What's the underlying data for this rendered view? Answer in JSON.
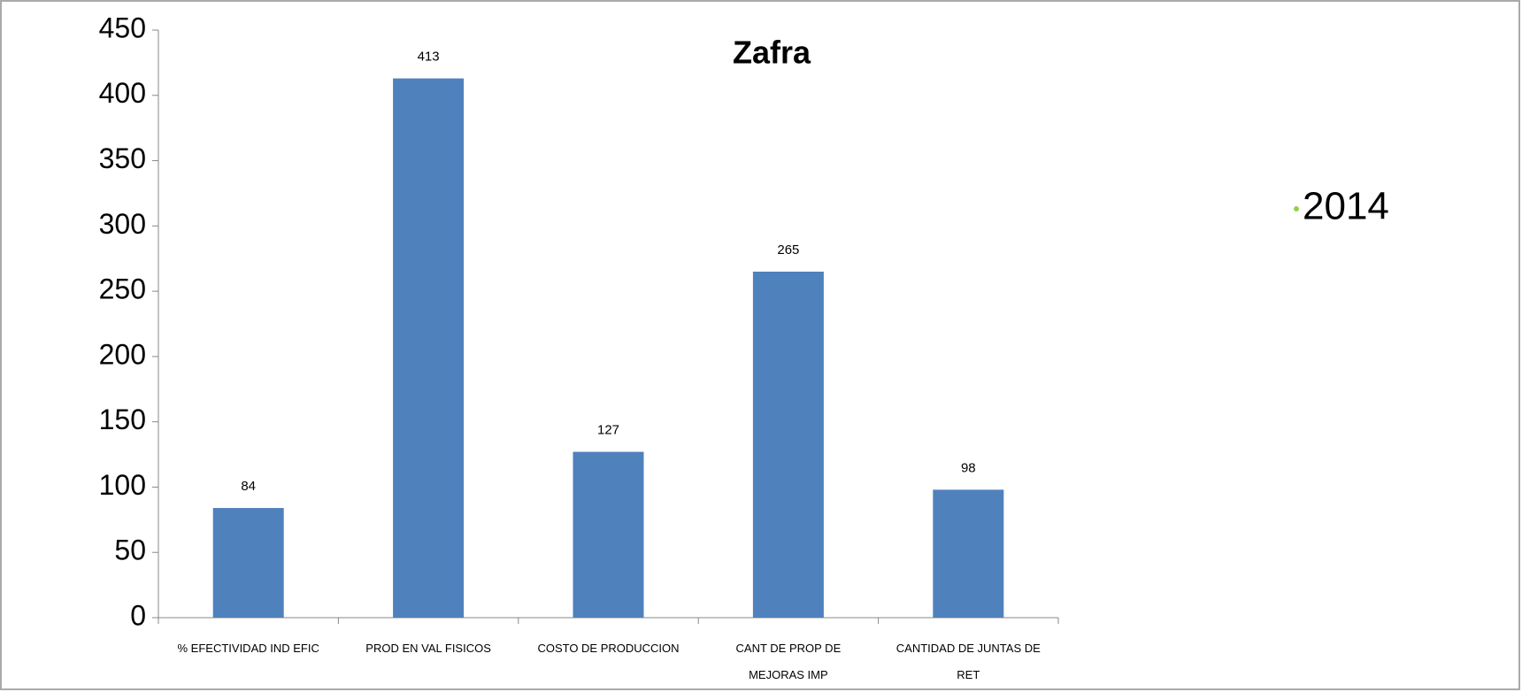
{
  "chart_data": {
    "type": "bar",
    "title": "Zafra",
    "categories": [
      "% EFECTIVIDAD IND EFIC",
      "PROD EN VAL FISICOS",
      "COSTO DE PRODUCCION",
      "CANT DE PROP DE MEJORAS IMP",
      "CANTIDAD DE JUNTAS DE RET"
    ],
    "series": [
      {
        "name": "2014",
        "color": "#4f81bd",
        "values": [
          84,
          413,
          127,
          265,
          98
        ]
      }
    ],
    "legend_color": "#92d050",
    "ylim": [
      0,
      450
    ],
    "yticks": [
      0,
      50,
      100,
      150,
      200,
      250,
      300,
      350,
      400,
      450
    ],
    "grid": false
  }
}
